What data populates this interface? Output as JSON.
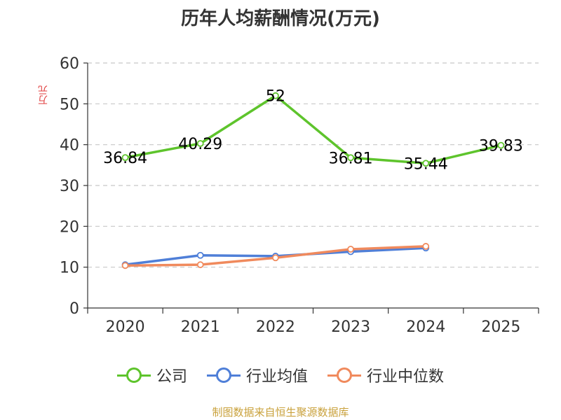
{
  "title": "历年人均薪酬情况(万元)",
  "source": "制图数据来自恒生聚源数据库",
  "chart_data": {
    "type": "line",
    "title": "历年人均薪酬情况(万元)",
    "ylabel": "万元",
    "xlabel": "",
    "categories": [
      "2020",
      "2021",
      "2022",
      "2023",
      "2024",
      "2025"
    ],
    "ylim": [
      0,
      60
    ],
    "yticks": [
      0,
      10,
      20,
      30,
      40,
      50,
      60
    ],
    "grid": true,
    "legend_position": "bottom",
    "series": [
      {
        "name": "公司",
        "color": "#5ec42c",
        "values": [
          36.84,
          40.29,
          52,
          36.81,
          35.44,
          39.83
        ],
        "labels": [
          "36.84",
          "40.29",
          "52",
          "36.81",
          "35.44",
          "39.83"
        ]
      },
      {
        "name": "行业均值",
        "color": "#4f7fd8",
        "values": [
          10.6,
          12.9,
          12.7,
          13.8,
          14.7,
          null
        ]
      },
      {
        "name": "行业中位数",
        "color": "#f08a5d",
        "values": [
          10.4,
          10.6,
          12.3,
          14.4,
          15.1,
          null
        ]
      }
    ]
  }
}
